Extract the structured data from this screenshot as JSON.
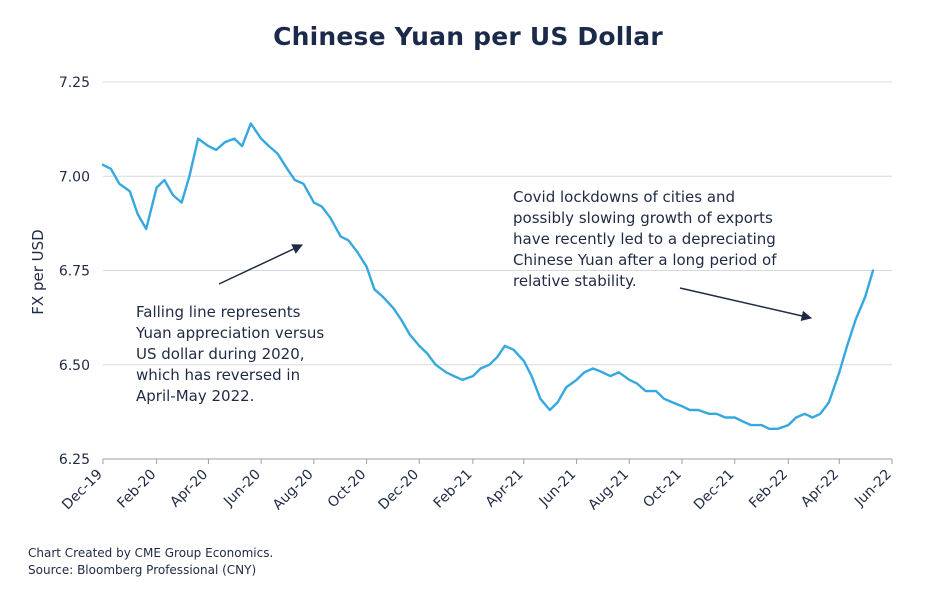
{
  "chart_data": {
    "type": "line",
    "title": "Chinese Yuan per US Dollar",
    "ylabel": "FX per USD",
    "ylim": [
      6.25,
      7.25
    ],
    "yticks": [
      "6.25",
      "6.50",
      "6.75",
      "7.00",
      "7.25"
    ],
    "xticks": [
      "Dec-19",
      "Feb-20",
      "Apr-20",
      "Jun-20",
      "Aug-20",
      "Oct-20",
      "Dec-20",
      "Feb-21",
      "Apr-21",
      "Jun-21",
      "Aug-21",
      "Oct-21",
      "Dec-21",
      "Feb-22",
      "Apr-22",
      "Jun-22"
    ],
    "grid": "horizontal",
    "line_color": "#35a8df",
    "series": [
      {
        "x": [
          "2019-12-01",
          "2019-12-10",
          "2019-12-20",
          "2020-01-01",
          "2020-01-10",
          "2020-01-20",
          "2020-02-01",
          "2020-02-10",
          "2020-02-20",
          "2020-03-01",
          "2020-03-10",
          "2020-03-20",
          "2020-04-01",
          "2020-04-10",
          "2020-04-20",
          "2020-05-01",
          "2020-05-10",
          "2020-05-20",
          "2020-06-01",
          "2020-06-10",
          "2020-06-20",
          "2020-07-01",
          "2020-07-10",
          "2020-07-20",
          "2020-08-01",
          "2020-08-10",
          "2020-08-20",
          "2020-09-01",
          "2020-09-10",
          "2020-09-20",
          "2020-10-01",
          "2020-10-10",
          "2020-10-20",
          "2020-11-01",
          "2020-11-10",
          "2020-11-20",
          "2020-12-01",
          "2020-12-10",
          "2020-12-20",
          "2021-01-01",
          "2021-01-10",
          "2021-01-20",
          "2021-02-01",
          "2021-02-10",
          "2021-02-20",
          "2021-03-01",
          "2021-03-10",
          "2021-03-20",
          "2021-04-01",
          "2021-04-10",
          "2021-04-20",
          "2021-05-01",
          "2021-05-10",
          "2021-05-20",
          "2021-06-01",
          "2021-06-10",
          "2021-06-20",
          "2021-07-01",
          "2021-07-10",
          "2021-07-20",
          "2021-08-01",
          "2021-08-10",
          "2021-08-20",
          "2021-09-01",
          "2021-09-10",
          "2021-09-20",
          "2021-10-01",
          "2021-10-10",
          "2021-10-20",
          "2021-11-01",
          "2021-11-10",
          "2021-11-20",
          "2021-12-01",
          "2021-12-10",
          "2021-12-20",
          "2022-01-01",
          "2022-01-10",
          "2022-01-20",
          "2022-02-01",
          "2022-02-10",
          "2022-02-20",
          "2022-03-01",
          "2022-03-10",
          "2022-03-20",
          "2022-04-01",
          "2022-04-10",
          "2022-04-20",
          "2022-05-01",
          "2022-05-10"
        ],
        "values": [
          7.03,
          7.02,
          6.98,
          6.96,
          6.9,
          6.86,
          6.97,
          6.99,
          6.95,
          6.93,
          7.0,
          7.1,
          7.08,
          7.07,
          7.09,
          7.1,
          7.08,
          7.14,
          7.1,
          7.08,
          7.06,
          7.02,
          6.99,
          6.98,
          6.93,
          6.92,
          6.89,
          6.84,
          6.83,
          6.8,
          6.76,
          6.7,
          6.68,
          6.65,
          6.62,
          6.58,
          6.55,
          6.53,
          6.5,
          6.48,
          6.47,
          6.46,
          6.47,
          6.49,
          6.5,
          6.52,
          6.55,
          6.54,
          6.51,
          6.47,
          6.41,
          6.38,
          6.4,
          6.44,
          6.46,
          6.48,
          6.49,
          6.48,
          6.47,
          6.48,
          6.46,
          6.45,
          6.43,
          6.43,
          6.41,
          6.4,
          6.39,
          6.38,
          6.38,
          6.37,
          6.37,
          6.36,
          6.36,
          6.35,
          6.34,
          6.34,
          6.33,
          6.33,
          6.34,
          6.36,
          6.37,
          6.36,
          6.37,
          6.4,
          6.48,
          6.55,
          6.62,
          6.68,
          6.75
        ]
      }
    ],
    "annotations": [
      {
        "lines": [
          "Falling line represents",
          "Yuan appreciation versus",
          "US dollar during 2020,",
          "which has reversed in",
          "April-May 2022."
        ]
      },
      {
        "lines": [
          "Covid lockdowns of cities and",
          "possibly slowing growth of exports",
          "have recently led to a depreciating",
          "Chinese Yuan after a long period of",
          "relative stability."
        ]
      }
    ]
  },
  "footer": {
    "line1": "Chart Created by CME Group Economics.",
    "line2": "Source:  Bloomberg Professional (CNY)"
  }
}
